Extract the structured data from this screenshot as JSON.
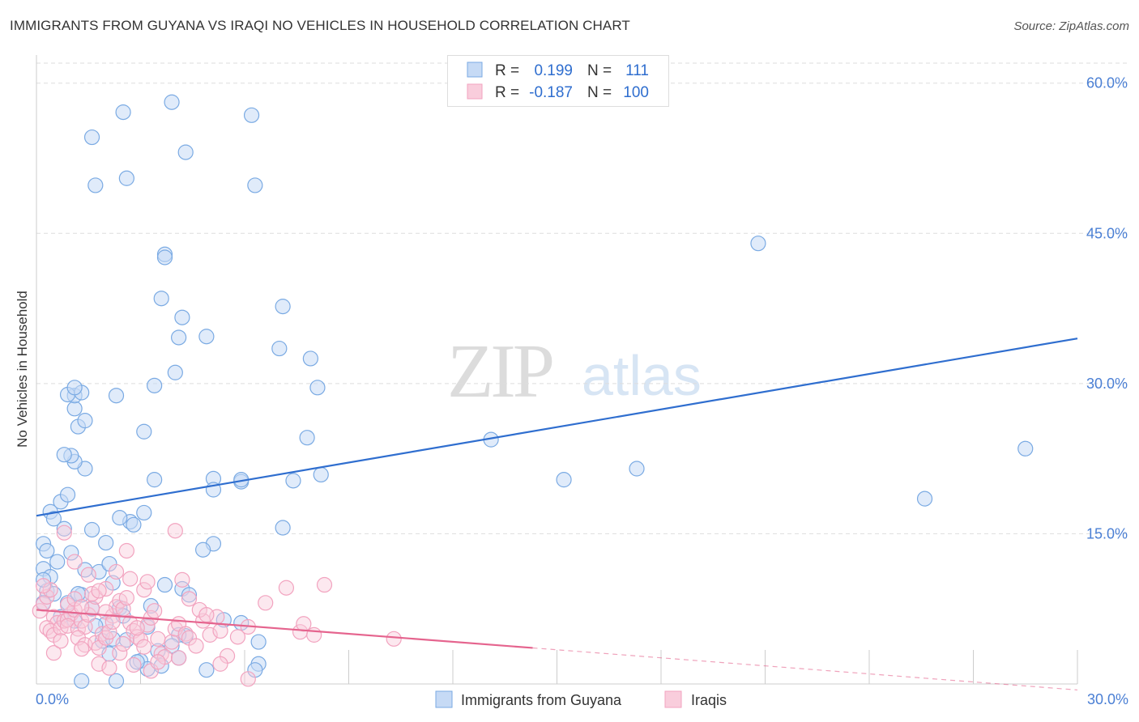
{
  "title": "IMMIGRANTS FROM GUYANA VS IRAQI NO VEHICLES IN HOUSEHOLD CORRELATION CHART",
  "source": "Source: ZipAtlas.com",
  "watermark": {
    "zip": "ZIP",
    "atlas": "atlas"
  },
  "chart_data": {
    "type": "scatter",
    "title": "IMMIGRANTS FROM GUYANA VS IRAQI NO VEHICLES IN HOUSEHOLD CORRELATION CHART",
    "xlabel": "",
    "ylabel": "No Vehicles in Household",
    "xlim": [
      0,
      30
    ],
    "ylim": [
      0,
      62
    ],
    "x_tick_labels": [
      "0.0%",
      "30.0%"
    ],
    "y_ticks": [
      15,
      30,
      45,
      60
    ],
    "y_tick_labels": [
      "15.0%",
      "30.0%",
      "45.0%",
      "60.0%"
    ],
    "grid": true,
    "legend_stats": [
      {
        "r_label": "R =",
        "r_value": "0.199",
        "n_label": "N =",
        "n_value": "111"
      },
      {
        "r_label": "R =",
        "r_value": "-0.187",
        "n_label": "N =",
        "n_value": "100"
      }
    ],
    "series": [
      {
        "name": "Immigrants from Guyana",
        "color": "#7aaae3",
        "trend_color": "#2f6ecf",
        "trendline": {
          "x": [
            0,
            30
          ],
          "y": [
            16.8,
            34.5
          ]
        },
        "points": [
          [
            0.2,
            14.0
          ],
          [
            0.4,
            17.2
          ],
          [
            0.5,
            16.5
          ],
          [
            0.3,
            13.3
          ],
          [
            0.8,
            15.5
          ],
          [
            1.0,
            13.1
          ],
          [
            0.6,
            12.2
          ],
          [
            0.2,
            11.5
          ],
          [
            0.4,
            10.7
          ],
          [
            0.3,
            9.3
          ],
          [
            0.5,
            9.0
          ],
          [
            0.2,
            8.1
          ],
          [
            0.9,
            8.1
          ],
          [
            1.3,
            8.9
          ],
          [
            1.6,
            7.5
          ],
          [
            0.7,
            6.7
          ],
          [
            1.1,
            6.3
          ],
          [
            2.0,
            6.0
          ],
          [
            2.4,
            7.6
          ],
          [
            3.3,
            7.8
          ],
          [
            1.8,
            11.2
          ],
          [
            2.1,
            12.0
          ],
          [
            1.4,
            11.4
          ],
          [
            1.7,
            5.8
          ],
          [
            2.6,
            4.4
          ],
          [
            3.0,
            2.3
          ],
          [
            2.1,
            3.0
          ],
          [
            1.3,
            0.3
          ],
          [
            2.3,
            0.3
          ],
          [
            3.2,
            1.5
          ],
          [
            3.5,
            3.3
          ],
          [
            4.1,
            2.6
          ],
          [
            4.3,
            4.8
          ],
          [
            4.9,
            1.4
          ],
          [
            6.4,
            2.0
          ],
          [
            3.6,
            1.8
          ],
          [
            0.2,
            10.4
          ],
          [
            0.7,
            18.2
          ],
          [
            0.9,
            18.9
          ],
          [
            1.4,
            21.5
          ],
          [
            1.1,
            22.2
          ],
          [
            1.0,
            22.8
          ],
          [
            0.8,
            22.9
          ],
          [
            1.2,
            25.7
          ],
          [
            1.4,
            26.3
          ],
          [
            1.1,
            27.5
          ],
          [
            1.1,
            28.8
          ],
          [
            0.9,
            28.9
          ],
          [
            1.3,
            29.1
          ],
          [
            1.1,
            29.6
          ],
          [
            2.3,
            28.8
          ],
          [
            2.7,
            16.2
          ],
          [
            2.8,
            15.9
          ],
          [
            3.1,
            17.1
          ],
          [
            3.4,
            20.4
          ],
          [
            3.1,
            25.2
          ],
          [
            3.4,
            29.8
          ],
          [
            4.0,
            31.1
          ],
          [
            4.1,
            34.6
          ],
          [
            4.2,
            36.6
          ],
          [
            3.6,
            38.5
          ],
          [
            3.7,
            42.9
          ],
          [
            3.7,
            42.6
          ],
          [
            5.1,
            20.5
          ],
          [
            5.1,
            19.4
          ],
          [
            5.9,
            20.2
          ],
          [
            5.9,
            20.4
          ],
          [
            7.4,
            20.3
          ],
          [
            8.2,
            20.9
          ],
          [
            7.1,
            37.7
          ],
          [
            7.0,
            33.5
          ],
          [
            7.9,
            32.5
          ],
          [
            8.1,
            29.6
          ],
          [
            7.8,
            24.6
          ],
          [
            2.6,
            50.5
          ],
          [
            1.7,
            49.8
          ],
          [
            1.6,
            54.6
          ],
          [
            2.5,
            57.1
          ],
          [
            3.9,
            58.1
          ],
          [
            4.3,
            53.1
          ],
          [
            6.2,
            56.8
          ],
          [
            6.3,
            49.8
          ],
          [
            4.9,
            34.7
          ],
          [
            4.2,
            9.5
          ],
          [
            3.7,
            9.9
          ],
          [
            4.1,
            4.9
          ],
          [
            4.4,
            8.9
          ],
          [
            5.1,
            14.0
          ],
          [
            4.8,
            13.4
          ],
          [
            5.4,
            6.4
          ],
          [
            5.9,
            6.1
          ],
          [
            6.4,
            4.2
          ],
          [
            6.3,
            1.4
          ],
          [
            7.1,
            15.6
          ],
          [
            13.1,
            24.4
          ],
          [
            15.2,
            20.4
          ],
          [
            17.3,
            21.5
          ],
          [
            20.8,
            44.0
          ],
          [
            25.6,
            18.5
          ],
          [
            28.5,
            23.5
          ],
          [
            2.9,
            2.2
          ],
          [
            1.9,
            4.3
          ],
          [
            2.2,
            4.5
          ],
          [
            3.9,
            3.8
          ],
          [
            3.2,
            5.7
          ],
          [
            2.5,
            6.8
          ],
          [
            2.0,
            14.1
          ],
          [
            2.4,
            16.6
          ],
          [
            1.6,
            15.4
          ],
          [
            2.2,
            10.1
          ],
          [
            1.2,
            9.0
          ]
        ]
      },
      {
        "name": "Iraqis",
        "color": "#f2a3bf",
        "trend_color": "#e5648e",
        "trendline": {
          "x": [
            0,
            14.3
          ],
          "y": [
            7.4,
            3.6
          ]
        },
        "trendline_dashed": {
          "x": [
            14.3,
            30
          ],
          "y": [
            3.6,
            -0.6
          ]
        },
        "points": [
          [
            0.1,
            7.3
          ],
          [
            0.2,
            8.0
          ],
          [
            0.3,
            8.7
          ],
          [
            0.4,
            9.4
          ],
          [
            0.2,
            9.8
          ],
          [
            0.5,
            6.7
          ],
          [
            0.6,
            6.1
          ],
          [
            0.3,
            5.6
          ],
          [
            0.4,
            5.3
          ],
          [
            0.5,
            4.9
          ],
          [
            0.7,
            5.6
          ],
          [
            0.8,
            6.3
          ],
          [
            0.9,
            6.4
          ],
          [
            1.0,
            7.0
          ],
          [
            1.1,
            7.4
          ],
          [
            0.9,
            5.8
          ],
          [
            1.2,
            5.5
          ],
          [
            1.3,
            6.3
          ],
          [
            1.4,
            5.7
          ],
          [
            1.5,
            6.9
          ],
          [
            1.6,
            7.6
          ],
          [
            1.2,
            4.6
          ],
          [
            1.4,
            3.9
          ],
          [
            1.7,
            4.1
          ],
          [
            1.8,
            3.6
          ],
          [
            1.9,
            5.0
          ],
          [
            2.0,
            4.6
          ],
          [
            2.1,
            5.2
          ],
          [
            2.2,
            6.8
          ],
          [
            2.3,
            7.7
          ],
          [
            2.4,
            8.3
          ],
          [
            2.5,
            7.5
          ],
          [
            2.6,
            8.6
          ],
          [
            2.7,
            6.1
          ],
          [
            2.8,
            5.3
          ],
          [
            2.9,
            4.7
          ],
          [
            3.0,
            4.4
          ],
          [
            3.1,
            3.7
          ],
          [
            3.2,
            5.9
          ],
          [
            3.3,
            6.6
          ],
          [
            3.4,
            7.3
          ],
          [
            3.5,
            4.5
          ],
          [
            3.6,
            3.0
          ],
          [
            3.7,
            2.7
          ],
          [
            3.9,
            4.2
          ],
          [
            4.0,
            5.5
          ],
          [
            4.1,
            6.0
          ],
          [
            4.3,
            5.0
          ],
          [
            4.4,
            4.6
          ],
          [
            4.6,
            3.8
          ],
          [
            4.8,
            6.3
          ],
          [
            5.0,
            4.9
          ],
          [
            5.2,
            6.7
          ],
          [
            5.3,
            5.3
          ],
          [
            5.5,
            2.8
          ],
          [
            5.8,
            4.7
          ],
          [
            6.1,
            5.7
          ],
          [
            6.6,
            8.1
          ],
          [
            7.2,
            9.6
          ],
          [
            7.6,
            5.2
          ],
          [
            7.7,
            6.0
          ],
          [
            8.0,
            4.9
          ],
          [
            8.3,
            9.9
          ],
          [
            10.3,
            4.5
          ],
          [
            0.8,
            15.1
          ],
          [
            1.1,
            12.2
          ],
          [
            1.5,
            10.9
          ],
          [
            1.7,
            8.7
          ],
          [
            2.0,
            9.5
          ],
          [
            2.3,
            11.2
          ],
          [
            2.6,
            13.3
          ],
          [
            2.7,
            10.5
          ],
          [
            3.1,
            9.4
          ],
          [
            3.2,
            10.2
          ],
          [
            4.0,
            15.3
          ],
          [
            4.2,
            10.4
          ],
          [
            4.4,
            8.5
          ],
          [
            4.7,
            7.4
          ],
          [
            4.9,
            6.9
          ],
          [
            1.3,
            3.5
          ],
          [
            1.8,
            2.0
          ],
          [
            2.1,
            1.6
          ],
          [
            2.4,
            3.1
          ],
          [
            2.8,
            1.9
          ],
          [
            3.3,
            1.3
          ],
          [
            3.5,
            2.2
          ],
          [
            4.1,
            2.6
          ],
          [
            5.3,
            2.0
          ],
          [
            6.1,
            0.5
          ],
          [
            0.5,
            3.1
          ],
          [
            0.7,
            4.3
          ],
          [
            0.9,
            7.9
          ],
          [
            1.1,
            8.5
          ],
          [
            1.3,
            7.7
          ],
          [
            1.6,
            9.0
          ],
          [
            1.8,
            9.3
          ],
          [
            2.0,
            7.2
          ],
          [
            2.2,
            6.2
          ],
          [
            2.5,
            4.0
          ],
          [
            2.9,
            5.6
          ]
        ]
      }
    ]
  }
}
